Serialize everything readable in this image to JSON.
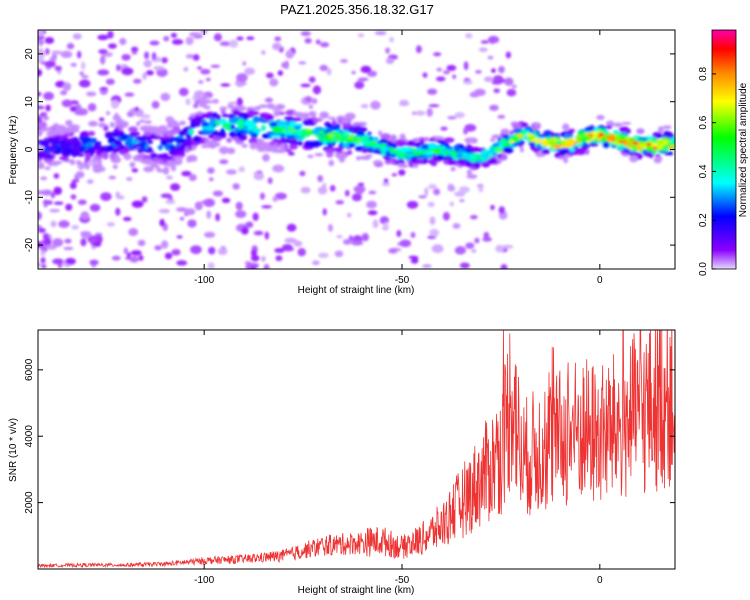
{
  "title": "PAZ1.2025.356.18.32.G17",
  "chart_data": [
    {
      "type": "heatmap",
      "xlabel": "Height of straight line (km)",
      "ylabel": "Frequency (Hz)",
      "xlim": [
        -142,
        19
      ],
      "ylim": [
        -25,
        25
      ],
      "xticks": [
        -100,
        -50,
        0
      ],
      "yticks": [
        -20,
        -10,
        0,
        10,
        20
      ],
      "colorbar": {
        "label": "Normalized spectral amplitude",
        "range": [
          0,
          0.98
        ],
        "ticks": [
          0.0,
          0.2,
          0.4,
          0.6,
          0.8
        ],
        "colormap": [
          "#ff00aa",
          "#ff0000",
          "#ff8800",
          "#ffff00",
          "#00ff00",
          "#00ffff",
          "#0000ff",
          "#8a00ff",
          "#e6d8ff"
        ]
      },
      "ridge": {
        "description": "dominant frequency vs height",
        "x": [
          -142,
          -130,
          -120,
          -110,
          -100,
          -90,
          -80,
          -70,
          -60,
          -50,
          -40,
          -30,
          -20,
          -10,
          0,
          10,
          19
        ],
        "freq": [
          0,
          1,
          2,
          0,
          5,
          5,
          4,
          3,
          2,
          -1,
          0,
          -2,
          3,
          1,
          3,
          1,
          1
        ],
        "amplitude": [
          0.25,
          0.3,
          0.35,
          0.3,
          0.45,
          0.5,
          0.55,
          0.6,
          0.6,
          0.5,
          0.55,
          0.45,
          0.7,
          0.75,
          0.85,
          0.9,
          0.85
        ]
      }
    },
    {
      "type": "line",
      "xlabel": "Height of straight line (km)",
      "ylabel": "SNR (10 * v/v)",
      "xlim": [
        -142,
        19
      ],
      "ylim": [
        0,
        7200
      ],
      "xticks": [
        -100,
        -50,
        0
      ],
      "yticks": [
        2000,
        4000,
        6000
      ],
      "series": [
        {
          "name": "SNR",
          "color": "#ee3333",
          "x": [
            -142,
            -130,
            -120,
            -110,
            -100,
            -90,
            -80,
            -75,
            -70,
            -65,
            -60,
            -55,
            -50,
            -45,
            -40,
            -35,
            -30,
            -25,
            -22,
            -20,
            -15,
            -10,
            -5,
            0,
            5,
            10,
            15,
            19
          ],
          "y": [
            100,
            120,
            120,
            150,
            250,
            300,
            400,
            550,
            700,
            750,
            800,
            850,
            650,
            900,
            1300,
            2000,
            2700,
            3500,
            5500,
            3300,
            3600,
            3900,
            4200,
            4000,
            4300,
            4700,
            5100,
            5400
          ]
        }
      ]
    }
  ]
}
